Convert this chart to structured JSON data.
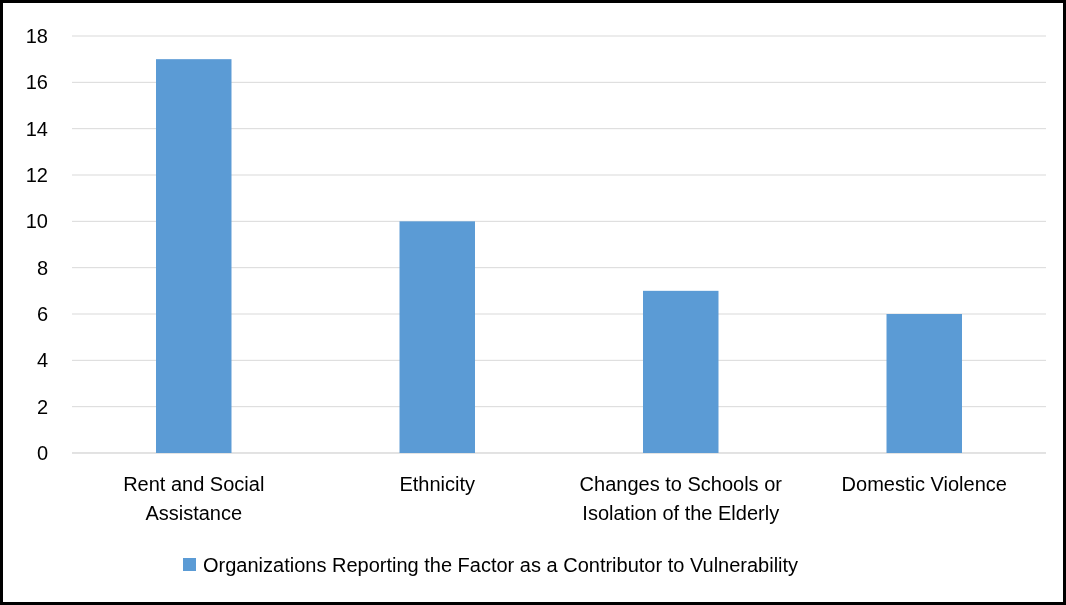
{
  "chart_data": {
    "type": "bar",
    "categories": [
      "Rent and Social Assistance",
      "Ethnicity",
      "Changes to Schools or Isolation of the Elderly",
      "Domestic Violence"
    ],
    "series": [
      {
        "name": "Organizations Reporting the Factor as a Contributor to Vulnerability",
        "color": "#5b9bd5",
        "values": [
          17,
          10,
          7,
          6
        ]
      }
    ],
    "ylim": [
      0,
      18
    ],
    "yticks": [
      0,
      2,
      4,
      6,
      8,
      10,
      12,
      14,
      16,
      18
    ],
    "grid": "y",
    "legend": "bottom"
  }
}
